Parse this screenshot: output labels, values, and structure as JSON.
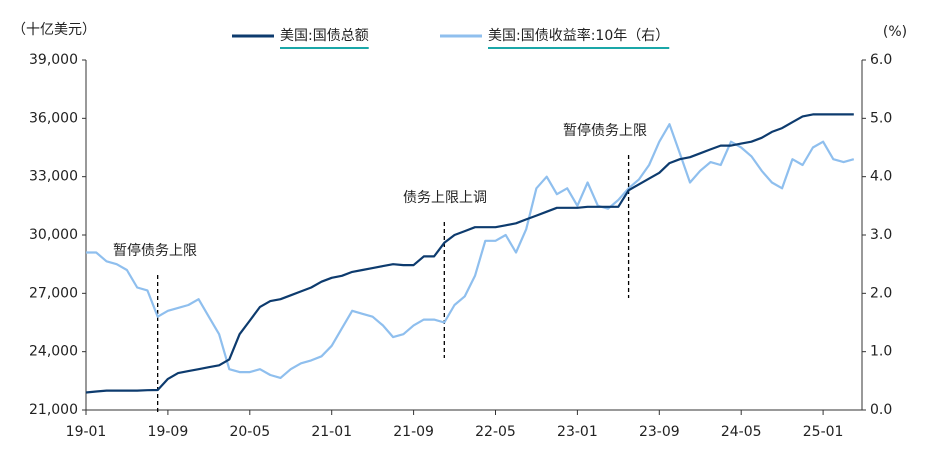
{
  "chart_data": {
    "type": "line",
    "left_axis_label": "（十亿美元）",
    "right_axis_label": "(%)",
    "x": [
      "19-01",
      "19-02",
      "19-03",
      "19-04",
      "19-05",
      "19-06",
      "19-07",
      "19-08",
      "19-09",
      "19-10",
      "19-11",
      "19-12",
      "20-01",
      "20-02",
      "20-03",
      "20-04",
      "20-05",
      "20-06",
      "20-07",
      "20-08",
      "20-09",
      "20-10",
      "20-11",
      "20-12",
      "21-01",
      "21-02",
      "21-03",
      "21-04",
      "21-05",
      "21-06",
      "21-07",
      "21-08",
      "21-09",
      "21-10",
      "21-11",
      "21-12",
      "22-01",
      "22-02",
      "22-03",
      "22-04",
      "22-05",
      "22-06",
      "22-07",
      "22-08",
      "22-09",
      "22-10",
      "22-11",
      "22-12",
      "23-01",
      "23-02",
      "23-03",
      "23-04",
      "23-05",
      "23-06",
      "23-07",
      "23-08",
      "23-09",
      "23-10",
      "23-11",
      "23-12",
      "24-01",
      "24-02",
      "24-03",
      "24-04",
      "24-05",
      "24-06",
      "24-07",
      "24-08",
      "24-09",
      "24-10",
      "24-11",
      "24-12",
      "25-01",
      "25-02",
      "25-03",
      "25-04"
    ],
    "xticks": [
      "19-01",
      "19-09",
      "20-05",
      "21-01",
      "21-09",
      "22-05",
      "23-01",
      "23-09",
      "24-05",
      "25-01"
    ],
    "series": [
      {
        "name": "美国:国债总额",
        "color": "#0d3b6e",
        "axis": "y",
        "values": [
          21900,
          21950,
          22000,
          22000,
          22000,
          22000,
          22020,
          22030,
          22600,
          22900,
          23000,
          23100,
          23200,
          23300,
          23600,
          24900,
          25600,
          26300,
          26600,
          26700,
          26900,
          27100,
          27300,
          27600,
          27800,
          27900,
          28100,
          28200,
          28300,
          28400,
          28500,
          28450,
          28450,
          28900,
          28900,
          29600,
          30000,
          30200,
          30400,
          30400,
          30400,
          30500,
          30600,
          30800,
          31000,
          31200,
          31400,
          31400,
          31400,
          31450,
          31450,
          31450,
          31450,
          32300,
          32600,
          32900,
          33200,
          33700,
          33900,
          34000,
          34200,
          34400,
          34600,
          34600,
          34700,
          34800,
          35000,
          35300,
          35500,
          35800,
          36100,
          36200,
          36200,
          36200,
          36200,
          36200
        ]
      },
      {
        "name": "美国:国债收益率:10年（右）",
        "color": "#8fbfee",
        "axis": "y2",
        "values": [
          2.7,
          2.7,
          2.55,
          2.5,
          2.4,
          2.1,
          2.05,
          1.6,
          1.7,
          1.75,
          1.8,
          1.9,
          1.6,
          1.3,
          0.7,
          0.65,
          0.65,
          0.7,
          0.6,
          0.55,
          0.7,
          0.8,
          0.85,
          0.92,
          1.1,
          1.4,
          1.7,
          1.65,
          1.6,
          1.45,
          1.25,
          1.3,
          1.45,
          1.55,
          1.55,
          1.5,
          1.8,
          1.95,
          2.3,
          2.9,
          2.9,
          3.0,
          2.7,
          3.1,
          3.8,
          4.0,
          3.7,
          3.8,
          3.5,
          3.9,
          3.5,
          3.45,
          3.6,
          3.8,
          3.95,
          4.2,
          4.6,
          4.9,
          4.4,
          3.9,
          4.1,
          4.25,
          4.2,
          4.6,
          4.5,
          4.35,
          4.1,
          3.9,
          3.8,
          4.3,
          4.2,
          4.5,
          4.6,
          4.3,
          4.25,
          4.3
        ]
      }
    ],
    "ylim": [
      21000,
      39000
    ],
    "yticks": [
      {
        "value": 21000,
        "label": "21,000"
      },
      {
        "value": 24000,
        "label": "24,000"
      },
      {
        "value": 27000,
        "label": "27,000"
      },
      {
        "value": 30000,
        "label": "30,000"
      },
      {
        "value": 33000,
        "label": "33,000"
      },
      {
        "value": 36000,
        "label": "36,000"
      },
      {
        "value": 39000,
        "label": "39,000"
      }
    ],
    "y2lim": [
      0,
      6
    ],
    "y2ticks": [
      {
        "value": 0,
        "label": "0.0"
      },
      {
        "value": 1,
        "label": "1.0"
      },
      {
        "value": 2,
        "label": "2.0"
      },
      {
        "value": 3,
        "label": "3.0"
      },
      {
        "value": 4,
        "label": "4.0"
      },
      {
        "value": 5,
        "label": "5.0"
      },
      {
        "value": 6,
        "label": "6.0"
      }
    ],
    "annotations": [
      {
        "text": "暂停债务上限",
        "x": "19-08"
      },
      {
        "text": "债务上限上调",
        "x": "21-12"
      },
      {
        "text": "暂停债务上限",
        "x": "23-06"
      }
    ],
    "legend": "top"
  }
}
